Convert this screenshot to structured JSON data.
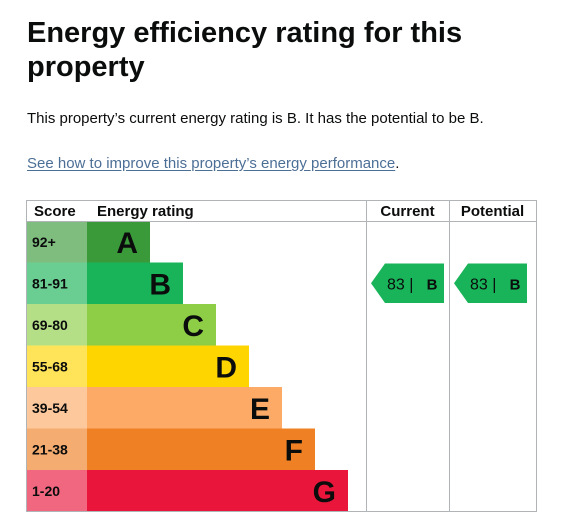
{
  "heading": "Energy efficiency rating for this property",
  "summary": "This property’s current energy rating is B. It has the potential to be B.",
  "improve_link": "See how to improve this property’s energy performance",
  "improve_suffix": ".",
  "chart_data": {
    "type": "table",
    "columns": [
      "Score",
      "Energy rating",
      "Current",
      "Potential"
    ],
    "bands": [
      {
        "score": "92+",
        "letter": "A",
        "color": "#3a9a3a"
      },
      {
        "score": "81-91",
        "letter": "B",
        "color": "#19b459"
      },
      {
        "score": "69-80",
        "letter": "C",
        "color": "#8dce46"
      },
      {
        "score": "55-68",
        "letter": "D",
        "color": "#ffd500"
      },
      {
        "score": "39-54",
        "letter": "E",
        "color": "#fcaa65"
      },
      {
        "score": "21-38",
        "letter": "F",
        "color": "#ef8023"
      },
      {
        "score": "1-20",
        "letter": "G",
        "color": "#e9153b"
      }
    ],
    "current": {
      "value": 83,
      "letter": "B",
      "text": "83 |",
      "band": "B",
      "color": "#19b459"
    },
    "potential": {
      "value": 83,
      "letter": "B",
      "text": "83 |",
      "band": "B",
      "color": "#19b459"
    }
  }
}
